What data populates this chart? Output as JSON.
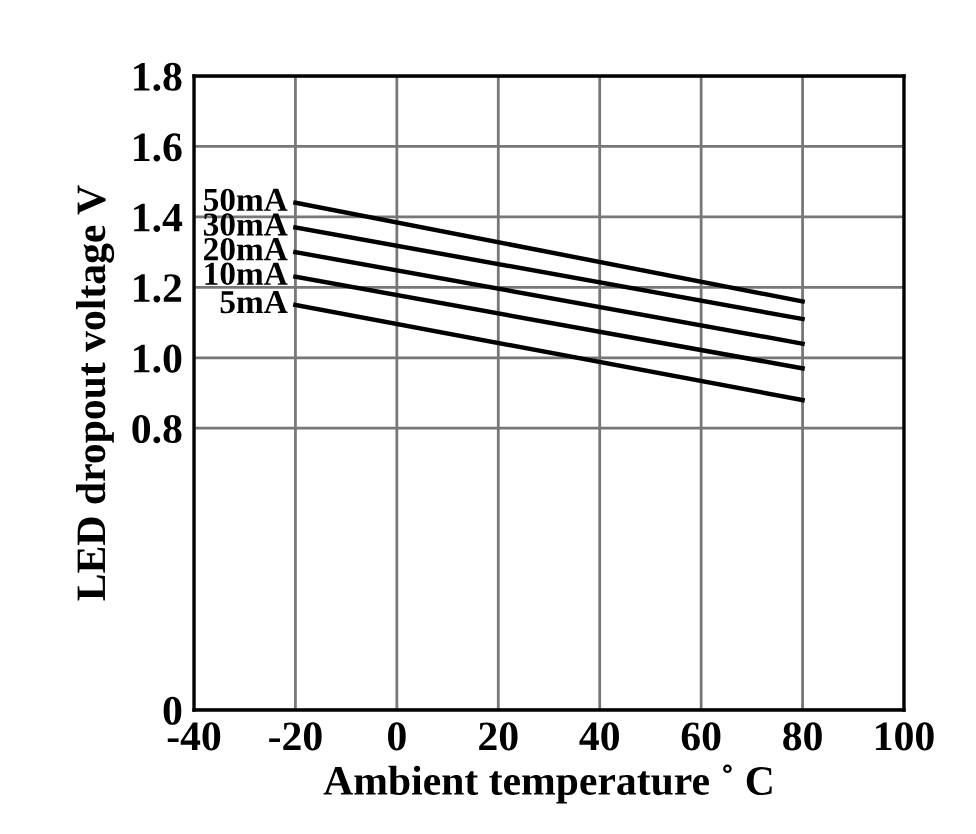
{
  "chart_data": {
    "type": "line",
    "xlabel": "Ambient temperature ˚ C",
    "ylabel": "LED dropout voltage V",
    "x": [
      -20,
      80
    ],
    "series": [
      {
        "name": "50mA",
        "color": "#000000",
        "values": [
          1.44,
          1.16
        ]
      },
      {
        "name": "30mA",
        "color": "#000000",
        "values": [
          1.37,
          1.11
        ]
      },
      {
        "name": "20mA",
        "color": "#000000",
        "values": [
          1.3,
          1.04
        ]
      },
      {
        "name": "10mA",
        "color": "#000000",
        "values": [
          1.23,
          0.97
        ]
      },
      {
        "name": "5mA",
        "color": "#000000",
        "values": [
          1.15,
          0.88
        ]
      }
    ],
    "xlim": [
      -40,
      100
    ],
    "xticks": [
      -40,
      -20,
      0,
      20,
      40,
      60,
      80,
      100
    ],
    "ylim": [
      0,
      1.8
    ],
    "yticks": [
      0,
      0.8,
      {
        "value": 1.0,
        "label": "1.0"
      },
      1.2,
      1.4,
      1.6,
      1.8
    ],
    "grid": true,
    "legend": false,
    "marker": "none",
    "line_style": "solid"
  }
}
